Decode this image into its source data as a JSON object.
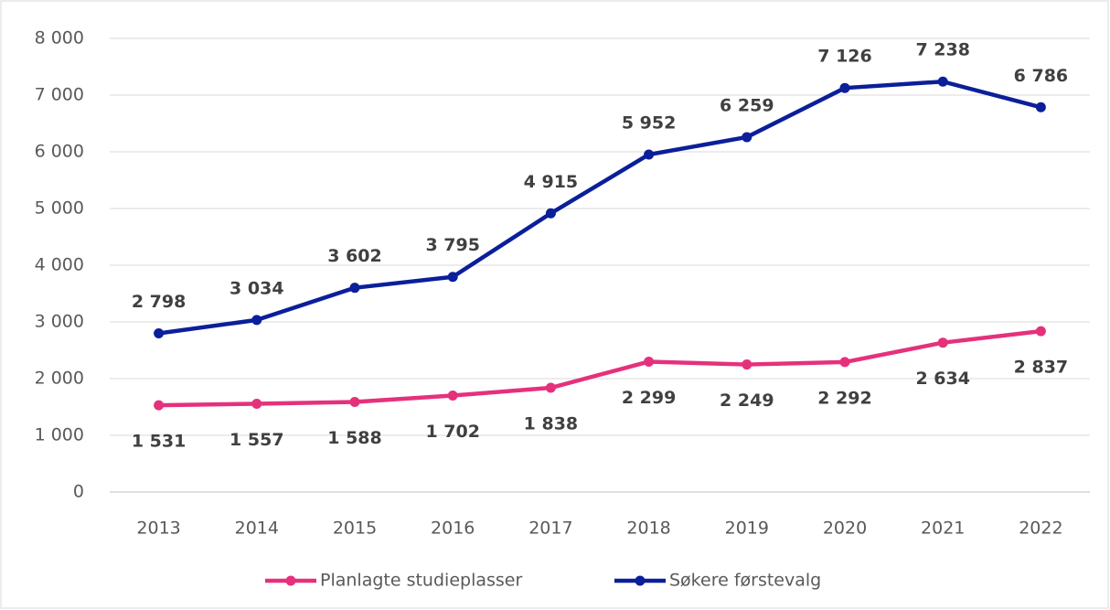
{
  "chart_data": {
    "type": "line",
    "categories": [
      "2013",
      "2014",
      "2015",
      "2016",
      "2017",
      "2018",
      "2019",
      "2020",
      "2021",
      "2022"
    ],
    "series": [
      {
        "name": "Planlagte studieplasser",
        "color": "#e5317b",
        "values": [
          1531,
          1557,
          1588,
          1702,
          1838,
          2299,
          2249,
          2292,
          2634,
          2837
        ],
        "value_labels": [
          "1 531",
          "1 557",
          "1 588",
          "1 702",
          "1 838",
          "2 299",
          "2 249",
          "2 292",
          "2 634",
          "2 837"
        ]
      },
      {
        "name": "Søkere førstevalg",
        "color": "#0b1f9a",
        "values": [
          2798,
          3034,
          3602,
          3795,
          4915,
          5952,
          6259,
          7126,
          7238,
          6786
        ],
        "value_labels": [
          "2 798",
          "3 034",
          "3 602",
          "3 795",
          "4 915",
          "5 952",
          "6 259",
          "7 126",
          "7 238",
          "6 786"
        ]
      }
    ],
    "ylim": [
      0,
      8000
    ],
    "yticks": [
      0,
      {
        "value": 1000,
        "label": "1 000"
      },
      {
        "value": 2000,
        "label": "2 000"
      },
      {
        "value": 3000,
        "label": "3 000"
      },
      {
        "value": 4000,
        "label": "4 000"
      },
      {
        "value": 5000,
        "label": "5 000"
      },
      {
        "value": 6000,
        "label": "6 000"
      },
      {
        "value": 7000,
        "label": "7 000"
      },
      {
        "value": 8000,
        "label": "8 000"
      }
    ],
    "grid": true,
    "legend": "bottom"
  }
}
